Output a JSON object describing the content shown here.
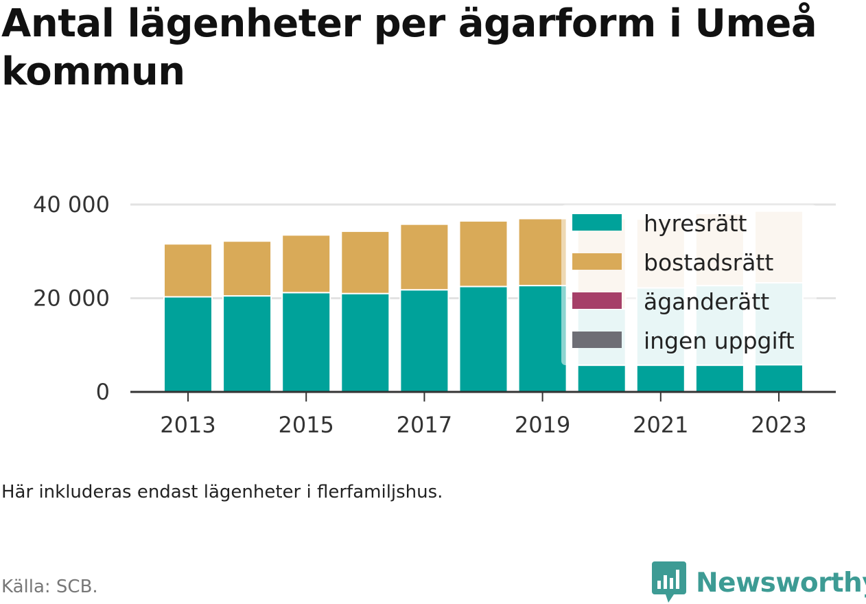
{
  "title": "Antal lägenheter per ägarform i Umeå kommun",
  "note": "Här inkluderas endast lägenheter i flerfamiljshus.",
  "source": "Källa: SCB.",
  "brand": {
    "name": "Newsworthy",
    "icon": "newsworthy-chart-bubble-icon",
    "color": "#3d9b94"
  },
  "chart_data": {
    "type": "bar",
    "stacked": true,
    "categories": [
      2013,
      2014,
      2015,
      2016,
      2017,
      2018,
      2019,
      2020,
      2021,
      2022,
      2023
    ],
    "x_tick_labels": [
      "2013",
      "2015",
      "2017",
      "2019",
      "2021",
      "2023"
    ],
    "y_ticks": [
      {
        "value": 0,
        "label": "0"
      },
      {
        "value": 20000,
        "label": "20 000"
      },
      {
        "value": 40000,
        "label": "40 000"
      }
    ],
    "ylim": [
      0,
      40000
    ],
    "grid": true,
    "legend_position": "top-right",
    "series": [
      {
        "name": "hyresrätt",
        "color": "#00a29a",
        "values": [
          20300,
          20500,
          21200,
          21000,
          21800,
          22500,
          22700,
          5700,
          5700,
          5700,
          5800
        ]
      },
      {
        "name": "bostadsrätt",
        "color": "#d9aa58",
        "values": [
          11300,
          11700,
          12300,
          13300,
          14000,
          14000,
          14300,
          0,
          0,
          0,
          0
        ]
      },
      {
        "name": "äganderätt",
        "color": "#a63f68",
        "values": [
          0,
          0,
          0,
          0,
          0,
          0,
          0,
          0,
          0,
          0,
          0
        ]
      },
      {
        "name": "ingen uppgift",
        "color": "#6e6e75",
        "values": [
          0,
          0,
          0,
          0,
          0,
          0,
          0,
          0,
          0,
          0,
          0
        ]
      }
    ],
    "overlay_series": [
      {
        "name": "hyresrätt (ljus)",
        "color": "#cdeceb",
        "values": [
          0,
          0,
          0,
          0,
          0,
          0,
          0,
          12000,
          16500,
          17000,
          17500
        ]
      },
      {
        "name": "bostadsrätt (ljus)",
        "color": "#f6ecdd",
        "values": [
          0,
          0,
          0,
          0,
          0,
          0,
          0,
          19300,
          14700,
          15400,
          15300
        ]
      }
    ]
  }
}
